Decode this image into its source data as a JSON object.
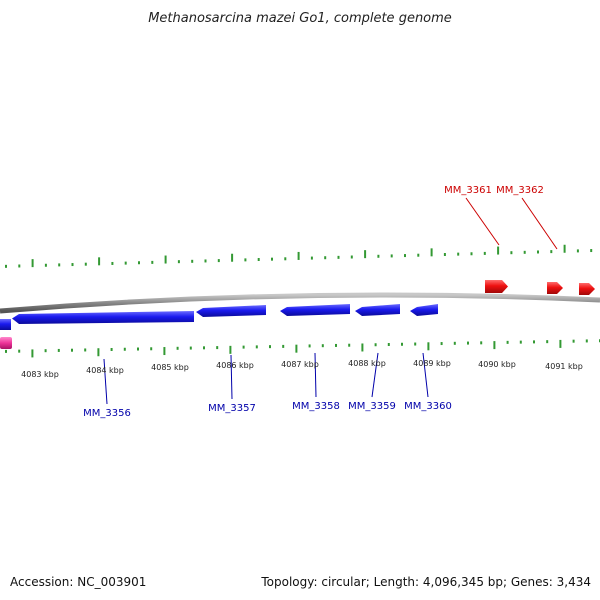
{
  "map": {
    "title": "Methanosarcina mazei Go1, complete genome",
    "accession": "Accession: NC_003901",
    "summary": "Topology: circular; Length: 4,096,345 bp; Genes: 3,434"
  },
  "colors": {
    "forward_gene": "#ee1111",
    "reverse_gene": "#1111ee",
    "feature_pink": "#ee3399",
    "tick": "#339933",
    "backbone": "#888888",
    "forward_label": "#cc0000",
    "reverse_label": "#0000aa"
  },
  "ticks": {
    "labels": [
      "4083 kbp",
      "4084 kbp",
      "4085 kbp",
      "4086 kbp",
      "4087 kbp",
      "4088 kbp",
      "4089 kbp",
      "4090 kbp",
      "4091 kbp"
    ]
  },
  "genes": {
    "forward": [
      {
        "label": "MM_3361"
      },
      {
        "label": "MM_3362"
      }
    ],
    "reverse": [
      {
        "label": "MM_3356"
      },
      {
        "label": "MM_3357"
      },
      {
        "label": "MM_3358"
      },
      {
        "label": "MM_3359"
      },
      {
        "label": "MM_3360"
      }
    ]
  }
}
